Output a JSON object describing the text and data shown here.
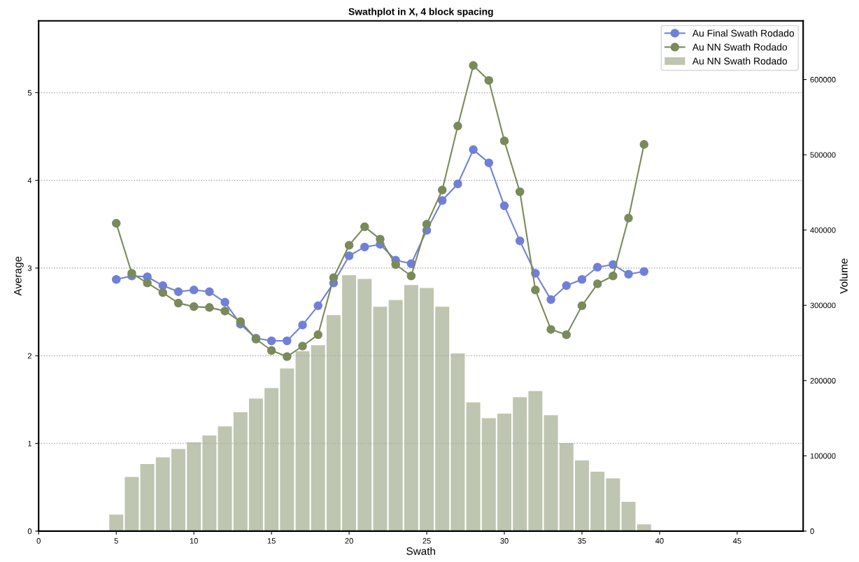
{
  "chart_data": {
    "type": "line",
    "title": "Swathplot in X, 4 block spacing",
    "xlabel": "Swath",
    "ylabel": "Average",
    "y2label": "Volume",
    "x": [
      5,
      6,
      7,
      8,
      9,
      10,
      11,
      12,
      13,
      14,
      15,
      16,
      17,
      18,
      19,
      20,
      21,
      22,
      23,
      24,
      25,
      26,
      27,
      28,
      29,
      30,
      31,
      32,
      33,
      34,
      35,
      36,
      37,
      38,
      39
    ],
    "xlim": [
      0,
      49.25
    ],
    "xticks": [
      0,
      5,
      10,
      15,
      20,
      25,
      30,
      35,
      40,
      45
    ],
    "ylim": [
      0,
      5.82
    ],
    "yticks": [
      0,
      1,
      2,
      3,
      4,
      5
    ],
    "y2lim": [
      0,
      678000
    ],
    "y2ticks": [
      0,
      100000,
      200000,
      300000,
      400000,
      500000,
      600000
    ],
    "grid": "y",
    "legend": "top right",
    "marker": "circle",
    "line_style": "solid",
    "series": [
      {
        "name": "Au Final Swath Rodado",
        "color": "#7080d8",
        "axis": "y",
        "values": [
          2.87,
          2.91,
          2.9,
          2.8,
          2.73,
          2.75,
          2.73,
          2.61,
          2.36,
          2.2,
          2.17,
          2.17,
          2.35,
          2.57,
          2.83,
          3.14,
          3.24,
          3.27,
          3.09,
          3.05,
          3.43,
          3.77,
          3.96,
          4.35,
          4.2,
          3.71,
          3.31,
          2.94,
          2.64,
          2.8,
          2.87,
          3.01,
          3.04,
          2.93,
          2.96
        ]
      },
      {
        "name": "Au NN Swath Rodado",
        "color": "#7a8a5a",
        "axis": "y",
        "values": [
          3.51,
          2.94,
          2.83,
          2.72,
          2.6,
          2.56,
          2.55,
          2.51,
          2.39,
          2.19,
          2.06,
          1.99,
          2.11,
          2.24,
          2.89,
          3.26,
          3.47,
          3.33,
          3.04,
          2.91,
          3.5,
          3.89,
          4.62,
          5.31,
          5.14,
          4.45,
          3.87,
          2.75,
          2.3,
          2.24,
          2.57,
          2.82,
          2.91,
          3.57,
          4.41
        ]
      },
      {
        "name": "Au NN Swath Rodado",
        "color": "#bec5b0",
        "type": "bar",
        "axis": "y2",
        "values": [
          22000,
          72000,
          89000,
          98000,
          109000,
          118000,
          127000,
          139000,
          158000,
          176000,
          190000,
          216000,
          239000,
          247000,
          287000,
          340000,
          335000,
          298000,
          307000,
          327000,
          323000,
          298000,
          236000,
          171000,
          150000,
          156000,
          178000,
          186000,
          154000,
          117000,
          94000,
          79000,
          70000,
          39000,
          9000
        ]
      }
    ]
  }
}
